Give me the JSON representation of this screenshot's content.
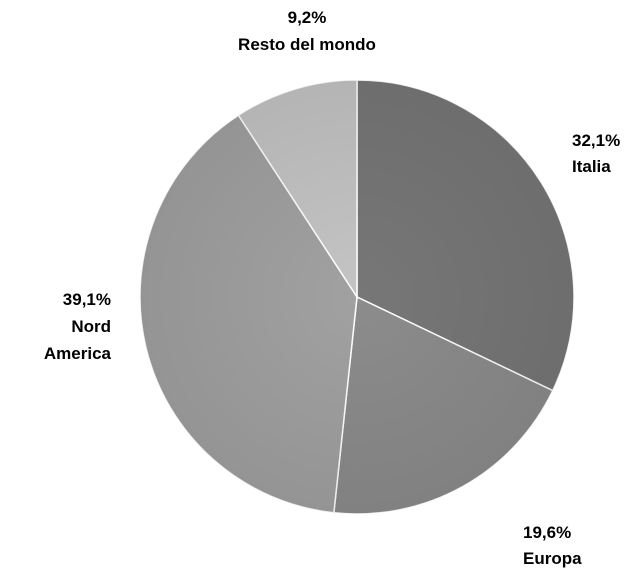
{
  "chart_data": {
    "type": "pie",
    "title": "",
    "slices": [
      {
        "label": "Italia",
        "value": 32.1,
        "value_label": "32,1%",
        "color": "#777777"
      },
      {
        "label": "Europa",
        "value": 19.6,
        "value_label": "19,6%",
        "color": "#8c8c8c"
      },
      {
        "label": "Nord America",
        "value": 39.1,
        "value_label": "39,1%",
        "color": "#a1a1a1"
      },
      {
        "label": "Resto del mondo",
        "value": 9.2,
        "value_label": "9,2%",
        "color": "#c4c4c4"
      }
    ]
  }
}
